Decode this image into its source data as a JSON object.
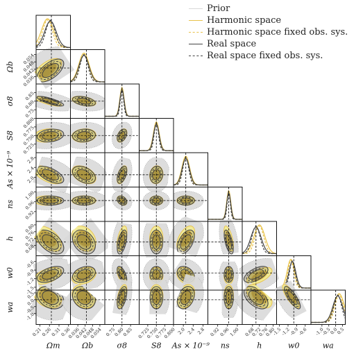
{
  "legend": {
    "entries": [
      {
        "label": "Prior",
        "color": "#d9d9d9",
        "style": "solid"
      },
      {
        "label": "Harmonic space",
        "color": "#e8c24a",
        "style": "solid"
      },
      {
        "label": "Harmonic space fixed obs. sys.",
        "color": "#e8c24a",
        "style": "dashed"
      },
      {
        "label": "Real space",
        "color": "#444444",
        "style": "solid"
      },
      {
        "label": "Real space fixed obs. sys.",
        "color": "#444444",
        "style": "dashed"
      }
    ]
  },
  "chart_data": {
    "type": "corner",
    "colors": {
      "prior": "#d9d9d9",
      "harmonic": "#e8c24a",
      "harmonic_fill": "#f2ea8f",
      "real": "#444444",
      "overlap": "#8a7a3a"
    },
    "parameters": [
      {
        "id": "Om",
        "label": "Ωm",
        "range": [
          0.19,
          0.37
        ],
        "ticks": [
          "0.21",
          "0.26",
          "0.31",
          "0.36"
        ],
        "truth": 0.27,
        "mean_h": 0.25,
        "mean_r": 0.265,
        "sd": 0.03
      },
      {
        "id": "Ob",
        "label": "Ωb",
        "range": [
          0.03,
          0.058
        ],
        "ticks": [
          "0.036",
          "0.042",
          "0.048",
          "0.054"
        ],
        "truth": 0.043,
        "mean_h": 0.041,
        "mean_r": 0.041,
        "sd": 0.004
      },
      {
        "id": "s8",
        "label": "σ8",
        "range": [
          0.7,
          0.9
        ],
        "ticks": [
          "0.75",
          "0.80",
          "0.85"
        ],
        "truth": 0.8,
        "mean_h": 0.8,
        "mean_r": 0.8,
        "sd": 0.012
      },
      {
        "id": "S8",
        "label": "S8",
        "range": [
          0.7,
          0.8
        ],
        "ticks": [
          "0.725",
          "0.750",
          "0.775",
          "0.800"
        ],
        "truth": 0.75,
        "mean_h": 0.75,
        "mean_r": 0.75,
        "sd": 0.008
      },
      {
        "id": "As",
        "label": "As × 10⁻⁹",
        "range": [
          1.6,
          3.0
        ],
        "ticks": [
          "2.0",
          "2.4",
          "2.8"
        ],
        "truth": 2.1,
        "mean_h": 2.1,
        "mean_r": 2.1,
        "sd": 0.15
      },
      {
        "id": "ns",
        "label": "ns",
        "range": [
          0.88,
          1.02
        ],
        "ticks": [
          "0.92",
          "0.96",
          "1.00",
          "1.04"
        ],
        "truth": 0.965,
        "mean_h": 0.965,
        "mean_r": 0.965,
        "sd": 0.008
      },
      {
        "id": "h",
        "label": "h",
        "range": [
          0.62,
          0.82
        ],
        "ticks": [
          "0.68",
          "0.72",
          "0.76",
          "0.80"
        ],
        "truth": 0.7,
        "mean_h": 0.72,
        "mean_r": 0.7,
        "sd": 0.03
      },
      {
        "id": "w0",
        "label": "w0",
        "range": [
          -1.6,
          -0.4
        ],
        "ticks": [
          "-1.5",
          "-1.2",
          "-0.9",
          "-0.6"
        ],
        "truth": -1.0,
        "mean_h": -1.1,
        "mean_r": -1.05,
        "sd": 0.12
      },
      {
        "id": "wa",
        "label": "wa",
        "range": [
          -1.8,
          0.7
        ],
        "ticks": [
          "-1.0",
          "-0.5",
          "0.0",
          "0.5"
        ],
        "truth": 0.0,
        "mean_h": 0.25,
        "mean_r": 0.15,
        "sd": 0.35
      }
    ],
    "correlations": [
      [
        1.0,
        0.6,
        -0.8,
        0.2,
        -0.6,
        0.0,
        -0.5,
        0.5,
        -0.3
      ],
      [
        0.6,
        1.0,
        -0.4,
        0.1,
        -0.4,
        0.0,
        -0.3,
        0.3,
        -0.2
      ],
      [
        -0.8,
        -0.4,
        1.0,
        0.4,
        0.5,
        -0.3,
        0.5,
        -0.6,
        0.5
      ],
      [
        0.2,
        0.1,
        0.4,
        1.0,
        0.1,
        0.0,
        0.0,
        0.0,
        0.0
      ],
      [
        -0.6,
        -0.4,
        0.5,
        0.1,
        1.0,
        0.0,
        0.5,
        -0.3,
        0.3
      ],
      [
        0.0,
        0.0,
        -0.3,
        0.0,
        0.0,
        1.0,
        -0.6,
        0.0,
        0.0
      ],
      [
        -0.5,
        -0.3,
        0.5,
        0.0,
        0.5,
        -0.6,
        1.0,
        0.6,
        -0.5
      ],
      [
        0.5,
        0.3,
        -0.6,
        0.0,
        -0.3,
        0.0,
        0.6,
        1.0,
        -0.8
      ],
      [
        -0.3,
        -0.2,
        0.5,
        0.0,
        0.3,
        0.0,
        -0.5,
        -0.8,
        1.0
      ]
    ]
  }
}
